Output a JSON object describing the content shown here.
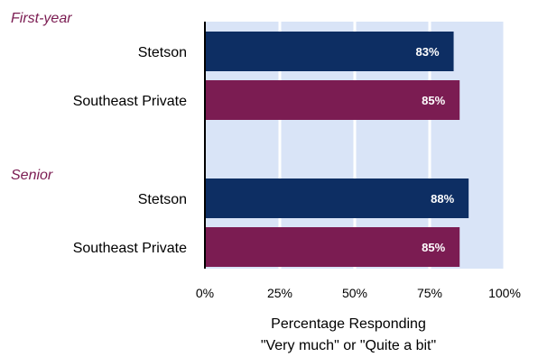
{
  "chart_data": {
    "type": "bar",
    "orientation": "horizontal",
    "groups": [
      {
        "label": "First-year",
        "bars": [
          {
            "category": "Stetson",
            "value": 83,
            "label": "83%",
            "color": "#0d2e63"
          },
          {
            "category": "Southeast Private",
            "value": 85,
            "label": "85%",
            "color": "#7b1c52"
          }
        ]
      },
      {
        "label": "Senior",
        "bars": [
          {
            "category": "Stetson",
            "value": 88,
            "label": "88%",
            "color": "#0d2e63"
          },
          {
            "category": "Southeast Private",
            "value": 85,
            "label": "85%",
            "color": "#7b1c52"
          }
        ]
      }
    ],
    "xlim": [
      0,
      100
    ],
    "xticks": [
      "0%",
      "25%",
      "50%",
      "75%",
      "100%"
    ],
    "xlabel_line1": "Percentage Responding",
    "xlabel_line2": "\"Very much\" or \"Quite a bit\"",
    "plot_background": "#d9e4f7",
    "gridlines": true,
    "gridline_color": "#ffffff",
    "group_label_color": "#7b1c52"
  }
}
